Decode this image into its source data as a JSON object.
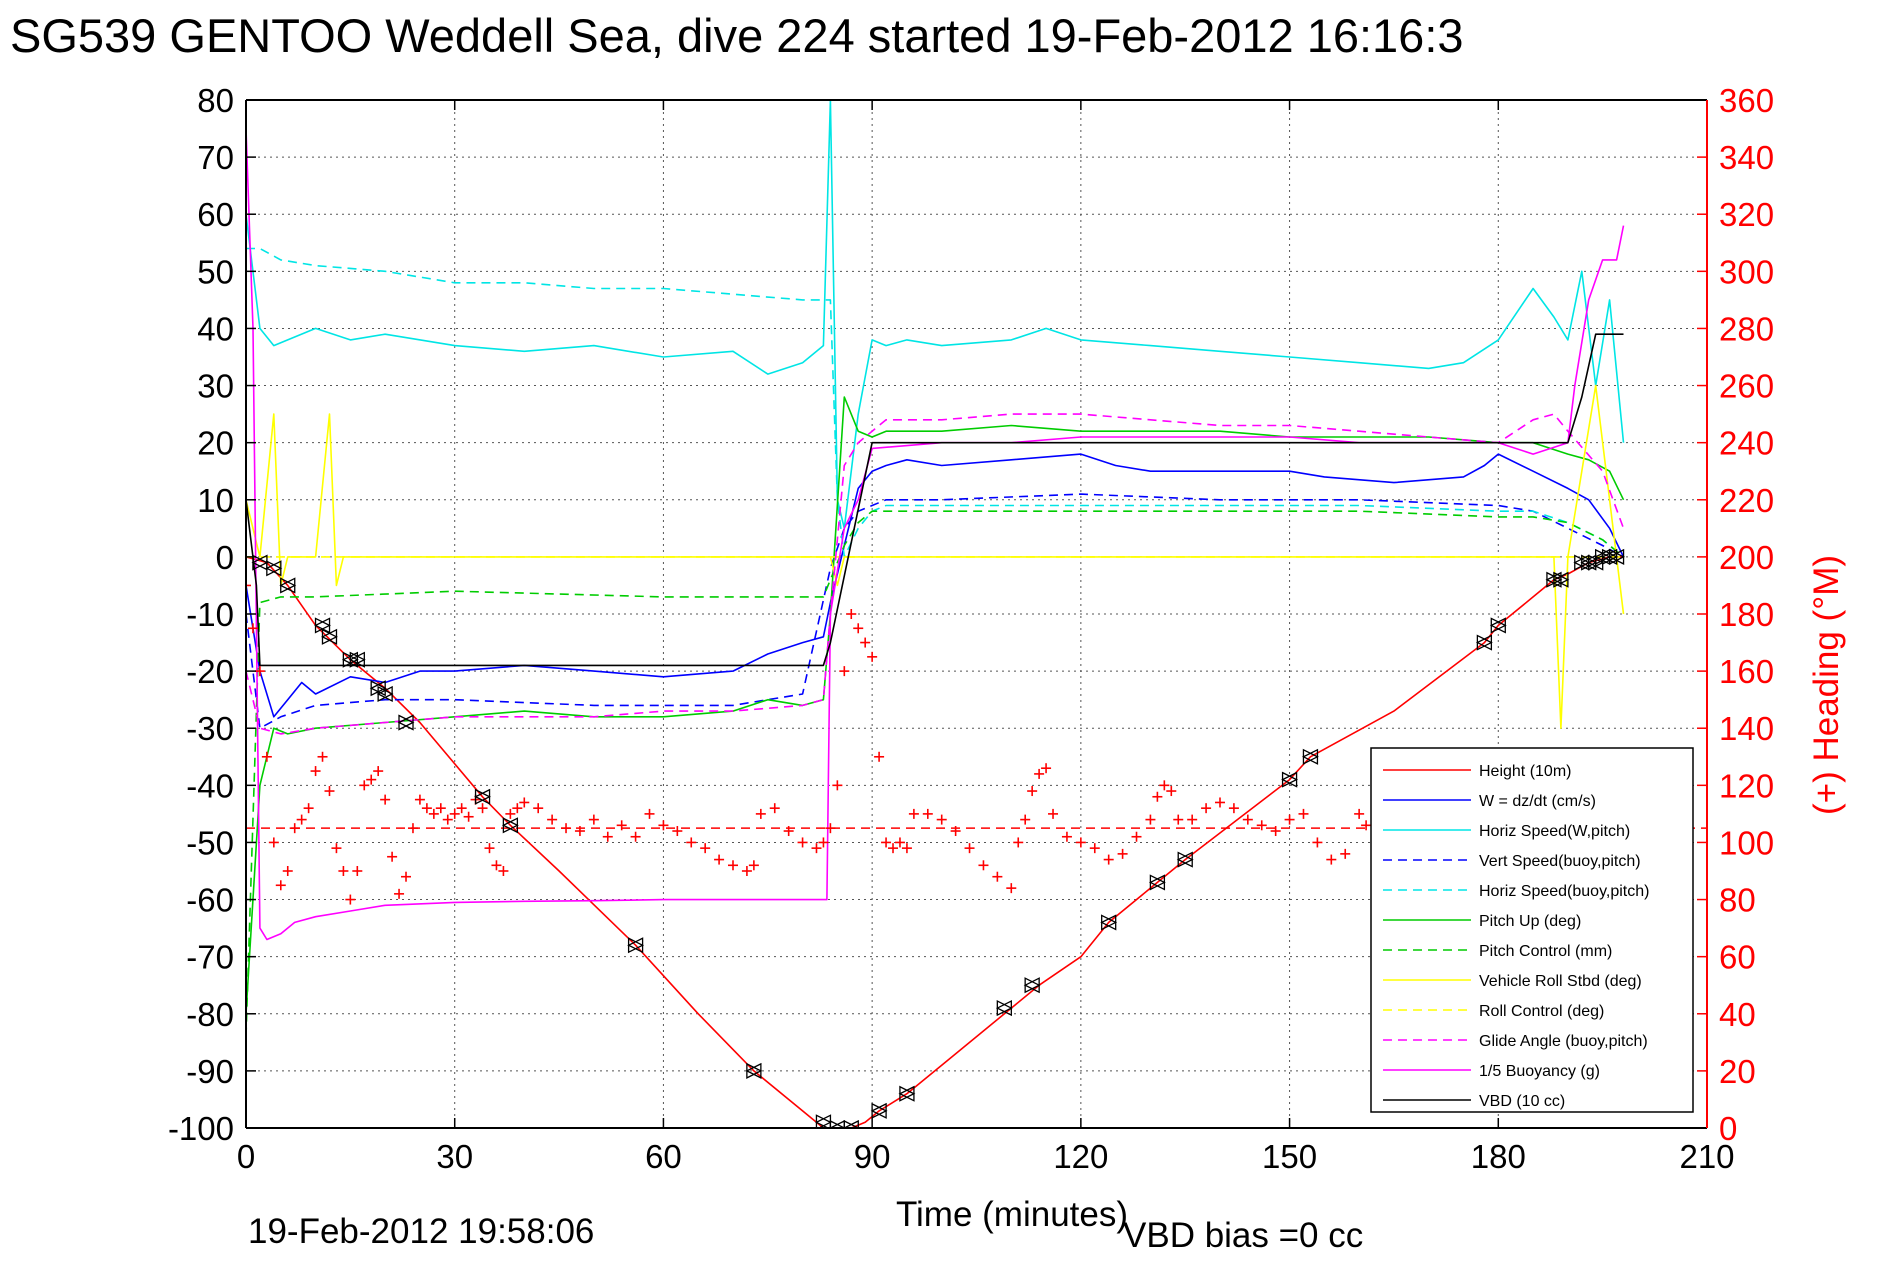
{
  "chart_data": {
    "type": "line",
    "title": "SG539 GENTOO Weddell Sea, dive 224 started 19-Feb-2012 16:16:3",
    "xlabel": "Time (minutes)",
    "ylabel": "",
    "y2label": "(+) Heading (°M)",
    "footer_left": "19-Feb-2012 19:58:06",
    "footer_right": "VBD bias =0 cc",
    "xlim": [
      0,
      210
    ],
    "ylim": [
      -100,
      80
    ],
    "y2lim": [
      0,
      360
    ],
    "grid": true,
    "legend_position": "bottom-right",
    "x_ticks": [
      "0",
      "30",
      "60",
      "90",
      "120",
      "150",
      "180",
      "210"
    ],
    "y_ticks": [
      "80",
      "70",
      "60",
      "50",
      "40",
      "30",
      "20",
      "10",
      "0",
      "-10",
      "-20",
      "-30",
      "-40",
      "-50",
      "-60",
      "-70",
      "-80",
      "-90",
      "-100"
    ],
    "y2_ticks": [
      "360",
      "340",
      "320",
      "300",
      "280",
      "260",
      "240",
      "220",
      "200",
      "180",
      "160",
      "140",
      "120",
      "100",
      "80",
      "60",
      "40",
      "20",
      "0"
    ],
    "series": [
      {
        "name": "Height (10m)",
        "color": "#ff0000",
        "style": "solid",
        "x": [
          0,
          3,
          6,
          10,
          15,
          20,
          25,
          34,
          38,
          45,
          56,
          65,
          73,
          80,
          83,
          85,
          87,
          89,
          91,
          95,
          100,
          110,
          114,
          120,
          124,
          131,
          135,
          150,
          153,
          165,
          178,
          180,
          185,
          188,
          190,
          193,
          196,
          198
        ],
        "y": [
          0,
          -1,
          -5,
          -12,
          -18,
          -23,
          -29,
          -42,
          -47,
          -55,
          -68,
          -80,
          -90,
          -97,
          -100,
          -100,
          -100,
          -99,
          -97,
          -94,
          -89,
          -79,
          -75,
          -70,
          -64,
          -57,
          -53,
          -39,
          -35,
          -27,
          -15,
          -12,
          -7,
          -4,
          -3,
          -1,
          0,
          0
        ]
      },
      {
        "name": "W = dz/dt (cm/s)",
        "color": "#0000ff",
        "style": "solid",
        "x": [
          0,
          2,
          4,
          6,
          8,
          10,
          15,
          20,
          25,
          30,
          40,
          50,
          60,
          70,
          75,
          80,
          83,
          84,
          86,
          88,
          90,
          92,
          95,
          100,
          110,
          120,
          125,
          130,
          140,
          150,
          155,
          165,
          175,
          178,
          180,
          185,
          190,
          193,
          196,
          198
        ],
        "y": [
          -5,
          -20,
          -28,
          -25,
          -22,
          -24,
          -21,
          -22,
          -20,
          -20,
          -19,
          -20,
          -21,
          -20,
          -17,
          -15,
          -14,
          -8,
          2,
          12,
          15,
          16,
          17,
          16,
          17,
          18,
          16,
          15,
          15,
          15,
          14,
          13,
          14,
          16,
          18,
          15,
          12,
          10,
          5,
          0
        ]
      },
      {
        "name": "Horiz Speed(W,pitch)",
        "color": "#00e5e5",
        "style": "solid",
        "x": [
          0,
          2,
          4,
          6,
          10,
          15,
          20,
          30,
          40,
          50,
          60,
          70,
          75,
          80,
          83,
          84,
          85,
          86,
          88,
          90,
          92,
          95,
          100,
          110,
          115,
          120,
          130,
          140,
          150,
          160,
          170,
          175,
          180,
          185,
          188,
          190,
          192,
          194,
          196,
          198
        ],
        "y": [
          60,
          40,
          37,
          38,
          40,
          38,
          39,
          37,
          36,
          37,
          35,
          36,
          32,
          34,
          37,
          80,
          10,
          5,
          25,
          38,
          37,
          38,
          37,
          38,
          40,
          38,
          37,
          36,
          35,
          34,
          33,
          34,
          38,
          47,
          42,
          38,
          50,
          30,
          45,
          20
        ]
      },
      {
        "name": "Vert Speed(buoy,pitch)",
        "color": "#0000ff",
        "style": "dashed",
        "x": [
          0,
          2,
          5,
          10,
          20,
          30,
          50,
          70,
          80,
          84,
          86,
          88,
          90,
          92,
          100,
          120,
          140,
          160,
          180,
          185,
          190,
          195,
          198
        ],
        "y": [
          -10,
          -30,
          -28,
          -26,
          -25,
          -25,
          -26,
          -26,
          -24,
          -2,
          5,
          8,
          9,
          10,
          10,
          11,
          10,
          10,
          9,
          8,
          5,
          2,
          0
        ]
      },
      {
        "name": "Horiz Speed(buoy,pitch)",
        "color": "#00e5e5",
        "style": "dashed",
        "x": [
          0,
          2,
          5,
          10,
          20,
          30,
          40,
          50,
          60,
          70,
          80,
          84,
          85,
          86,
          88,
          90,
          92,
          100,
          120,
          140,
          160,
          180,
          185,
          190,
          195,
          198
        ],
        "y": [
          54,
          54,
          52,
          51,
          50,
          48,
          48,
          47,
          47,
          46,
          45,
          45,
          10,
          0,
          5,
          8,
          9,
          9,
          9,
          9,
          9,
          8,
          8,
          6,
          3,
          0
        ]
      },
      {
        "name": "Pitch Up (deg)",
        "color": "#00cc00",
        "style": "solid",
        "x": [
          0,
          2,
          4,
          6,
          10,
          20,
          30,
          40,
          50,
          60,
          70,
          75,
          80,
          83,
          84,
          86,
          88,
          90,
          92,
          100,
          110,
          120,
          130,
          140,
          150,
          160,
          170,
          180,
          185,
          190,
          193,
          196,
          198
        ],
        "y": [
          -80,
          -40,
          -30,
          -31,
          -30,
          -29,
          -28,
          -27,
          -28,
          -28,
          -27,
          -25,
          -26,
          -25,
          -10,
          28,
          22,
          21,
          22,
          22,
          23,
          22,
          22,
          22,
          21,
          21,
          21,
          20,
          20,
          18,
          17,
          15,
          10
        ]
      },
      {
        "name": "Pitch Control (mm)",
        "color": "#00cc00",
        "style": "dashed",
        "x": [
          0,
          2,
          5,
          10,
          30,
          60,
          83,
          84,
          86,
          88,
          90,
          100,
          120,
          140,
          160,
          180,
          185,
          190,
          195,
          198
        ],
        "y": [
          -84,
          -8,
          -7,
          -7,
          -6,
          -7,
          -7,
          -4,
          2,
          6,
          8,
          8,
          8,
          8,
          8,
          7,
          7,
          6,
          3,
          0
        ]
      },
      {
        "name": "Vehicle Roll Stbd (deg)",
        "color": "#ffff00",
        "style": "solid",
        "x": [
          0,
          2,
          4,
          5,
          6,
          10,
          12,
          13,
          14,
          20,
          30,
          40,
          50,
          60,
          70,
          80,
          84,
          85,
          86,
          90,
          100,
          110,
          120,
          130,
          140,
          150,
          160,
          170,
          180,
          188,
          189,
          190,
          194,
          198
        ],
        "y": [
          10,
          0,
          25,
          -5,
          0,
          0,
          25,
          -5,
          0,
          0,
          0,
          0,
          0,
          0,
          0,
          0,
          0,
          -5,
          0,
          0,
          0,
          0,
          0,
          0,
          0,
          0,
          0,
          0,
          0,
          0,
          -30,
          0,
          30,
          -10
        ]
      },
      {
        "name": "Roll Control (deg)",
        "color": "#ffff00",
        "style": "dashed",
        "x": [
          0,
          10,
          30,
          60,
          84,
          86,
          90,
          120,
          150,
          180,
          190,
          195,
          198
        ],
        "y": [
          0,
          0,
          0,
          0,
          0,
          0,
          0,
          0,
          0,
          0,
          0,
          0,
          0
        ]
      },
      {
        "name": "Glide Angle (buoy,pitch)",
        "color": "#ff00ff",
        "style": "dashed",
        "x": [
          0,
          2,
          5,
          10,
          20,
          30,
          40,
          50,
          60,
          70,
          80,
          83,
          84,
          86,
          88,
          90,
          92,
          100,
          110,
          120,
          130,
          140,
          150,
          160,
          170,
          180,
          185,
          188,
          190,
          195,
          198
        ],
        "y": [
          -20,
          -30,
          -31,
          -30,
          -29,
          -28,
          -28,
          -28,
          -27,
          -27,
          -26,
          -25,
          -10,
          16,
          20,
          22,
          24,
          24,
          25,
          25,
          24,
          23,
          23,
          22,
          21,
          20,
          24,
          25,
          22,
          15,
          5
        ]
      },
      {
        "name": "1/5 Buoyancy (g)",
        "color": "#ff00ff",
        "style": "solid",
        "x": [
          0,
          1,
          2,
          3,
          5,
          7,
          10,
          15,
          20,
          30,
          40,
          50,
          60,
          70,
          80,
          83.5,
          84,
          86,
          88,
          90,
          100,
          110,
          120,
          130,
          140,
          150,
          160,
          170,
          180,
          185,
          190,
          191,
          193,
          195,
          197,
          198
        ],
        "y": [
          75,
          40,
          -65,
          -67,
          -66,
          -64,
          -63,
          -62,
          -61,
          -60.5,
          -60.3,
          -60.2,
          -60,
          -60,
          -60,
          -60,
          -10,
          5,
          10,
          19,
          20,
          20,
          21,
          21,
          21,
          21,
          20,
          20,
          20,
          18,
          20,
          30,
          45,
          52,
          52,
          58
        ]
      },
      {
        "name": "VBD (10 cc)",
        "color": "#000000",
        "style": "solid",
        "x": [
          0,
          1.5,
          2,
          3,
          10,
          20,
          30,
          40,
          50,
          60,
          70,
          80,
          83,
          84,
          90,
          100,
          120,
          140,
          160,
          170,
          180,
          190,
          192,
          194,
          196,
          198
        ],
        "y": [
          10,
          -5,
          -19,
          -19,
          -19,
          -19,
          -19,
          -19,
          -19,
          -19,
          -19,
          -19,
          -19,
          -15,
          20,
          20,
          20,
          20,
          20,
          20,
          20,
          20,
          28,
          39,
          39,
          39
        ]
      }
    ],
    "heading_series": {
      "name": "Heading (+)",
      "color": "#ff0000",
      "marker": "+",
      "axis": "right",
      "x": [
        0,
        1,
        2,
        3,
        4,
        5,
        6,
        7,
        8,
        9,
        10,
        11,
        12,
        13,
        14,
        15,
        16,
        17,
        18,
        19,
        20,
        21,
        22,
        23,
        24,
        25,
        26,
        27,
        28,
        29,
        30,
        31,
        32,
        33,
        34,
        35,
        36,
        37,
        38,
        39,
        40,
        42,
        44,
        46,
        48,
        50,
        52,
        54,
        56,
        58,
        60,
        62,
        64,
        66,
        68,
        70,
        72,
        73,
        74,
        76,
        78,
        80,
        82,
        83,
        84,
        85,
        86,
        87,
        88,
        89,
        90,
        91,
        92,
        93,
        94,
        95,
        96,
        98,
        100,
        102,
        104,
        106,
        108,
        110,
        111,
        112,
        113,
        114,
        115,
        116,
        118,
        120,
        122,
        124,
        126,
        128,
        130,
        131,
        132,
        133,
        134,
        136,
        138,
        140,
        142,
        144,
        146,
        148,
        150,
        152,
        154,
        156,
        158,
        160,
        161
      ],
      "y": [
        190,
        175,
        160,
        130,
        100,
        85,
        90,
        105,
        108,
        112,
        125,
        130,
        118,
        98,
        90,
        80,
        90,
        120,
        122,
        125,
        115,
        95,
        82,
        88,
        105,
        115,
        112,
        110,
        112,
        108,
        110,
        112,
        109,
        115,
        112,
        98,
        92,
        90,
        110,
        112,
        114,
        112,
        108,
        105,
        104,
        108,
        102,
        106,
        102,
        110,
        106,
        104,
        100,
        98,
        94,
        92,
        90,
        92,
        110,
        112,
        104,
        100,
        98,
        100,
        105,
        120,
        160,
        180,
        175,
        170,
        165,
        130,
        100,
        98,
        100,
        98,
        110,
        110,
        108,
        104,
        98,
        92,
        88,
        84,
        100,
        108,
        118,
        124,
        126,
        110,
        102,
        100,
        98,
        94,
        96,
        102,
        108,
        116,
        120,
        118,
        108,
        108,
        112,
        114,
        112,
        108,
        106,
        104,
        108,
        110,
        100,
        94,
        96,
        110,
        106
      ],
      "mean_line_y": 105
    },
    "depth_markers": {
      "marker": "triangle",
      "x": [
        2,
        4,
        6,
        11,
        12,
        15,
        16,
        19,
        20,
        23,
        34,
        38,
        56,
        73,
        83,
        85,
        87,
        91,
        95,
        109,
        113,
        124,
        131,
        135,
        150,
        153,
        178,
        180,
        188,
        189,
        192,
        193,
        194,
        195,
        196,
        197
      ],
      "y": [
        -1,
        -2,
        -5,
        -12,
        -14,
        -18,
        -18,
        -23,
        -24,
        -29,
        -42,
        -47,
        -68,
        -90,
        -99,
        -100,
        -100,
        -97,
        -94,
        -79,
        -75,
        -64,
        -57,
        -53,
        -39,
        -35,
        -15,
        -12,
        -4,
        -4,
        -1,
        -1,
        -1,
        0,
        0,
        0
      ]
    }
  }
}
